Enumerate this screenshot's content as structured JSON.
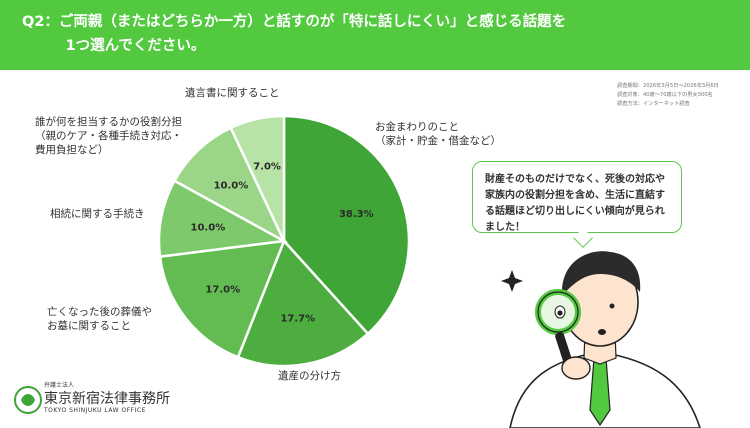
{
  "header": {
    "question": "Q2：ご両親（またはどちらか一方）と話すのが「特に話しにくい」と感じる話題を\n　　　1つ選んでください。"
  },
  "meta": {
    "line1": "調査期間：2026年3月5日～2026年3月6日",
    "line2": "調査対象：40歳～70歳以下の男女300名",
    "line3": "調査方法：インターネット調査"
  },
  "bubble": {
    "text": "財産そのものだけでなく、死後の対応や家族内の役割分担を含め、生活に直結する話題ほど切り出しにくい傾向が見られました！"
  },
  "logo": {
    "sub": "弁護士法人",
    "name": "東京新宿法律事務所",
    "roman": "TOKYO SHINJUKU LAW OFFICE"
  },
  "colors": {
    "header": "#52c93f",
    "slices": [
      "#3fa537",
      "#4dae3f",
      "#63bc51",
      "#7ec96b",
      "#9bd688",
      "#b7e3a7"
    ]
  },
  "chart_data": {
    "type": "pie",
    "categories": [
      "お金まわりのこと\n（家計・貯金・借金など）",
      "遺産の分け方",
      "亡くなった後の葬儀や\nお墓に関すること",
      "相続に関する手続き",
      "誰が何を担当するかの役割分担\n（親のケア・各種手続き対応・\n費用負担など）",
      "遺言書に関すること"
    ],
    "values": [
      38.3,
      17.7,
      17.0,
      10.0,
      10.0,
      7.0
    ],
    "value_labels": [
      "38.3%",
      "17.7%",
      "17.0%",
      "10.0%",
      "10.0%",
      "7.0%"
    ]
  }
}
